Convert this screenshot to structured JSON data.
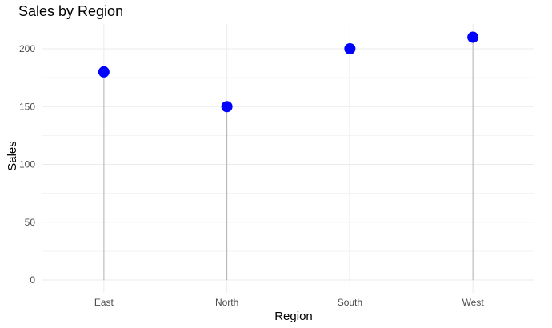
{
  "chart_data": {
    "type": "lollipop",
    "title": "Sales by Region",
    "xlabel": "Region",
    "ylabel": "Sales",
    "categories": [
      "East",
      "North",
      "South",
      "West"
    ],
    "values": [
      180,
      150,
      200,
      210
    ],
    "ylim": [
      0,
      220
    ],
    "y_ticks": [
      0,
      50,
      100,
      150,
      200
    ],
    "grid": true,
    "legend": "none",
    "colors": {
      "point": "#0000ff",
      "stem": "#b3b3b3",
      "grid_major": "#ebebeb",
      "grid_minor": "#f3f3f3",
      "background": "#ffffff"
    }
  }
}
